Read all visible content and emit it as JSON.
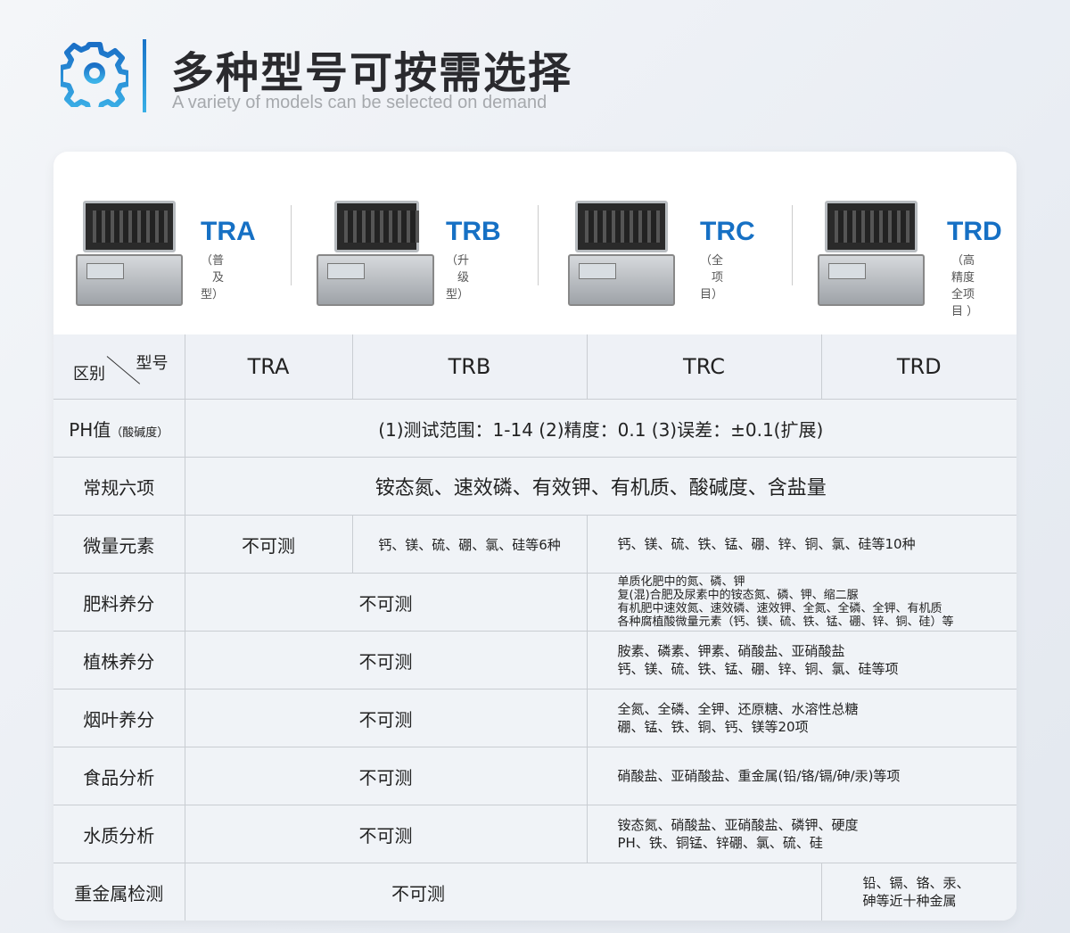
{
  "header": {
    "title": "多种型号可按需选择",
    "subtitle": "A variety of models can be selected on demand",
    "icon": "gear-icon",
    "accent": "#1670c4"
  },
  "products": [
    {
      "name": "TRA",
      "desc": "（普及型）"
    },
    {
      "name": "TRB",
      "desc": "（升级型）"
    },
    {
      "name": "TRC",
      "desc": "（全项目）"
    },
    {
      "name": "TRD",
      "desc": "（高精度\n全项目 ）"
    }
  ],
  "table": {
    "corner": {
      "top": "型号",
      "bottom": "区别"
    },
    "columns": [
      "TRA",
      "TRB",
      "TRC",
      "TRD"
    ],
    "rows": {
      "ph": {
        "label": "PH值",
        "label_note": "（酸碱度）",
        "value": "(1)测试范围：1-14 (2)精度：0.1 (3)误差：±0.1(扩展)"
      },
      "six": {
        "label": "常规六项",
        "value": "铵态氮、速效磷、有效钾、有机质、酸碱度、含盐量"
      },
      "trace": {
        "label": "微量元素",
        "tra": "不可测",
        "trb": "钙、镁、硫、硼、氯、硅等6种",
        "trcd": "钙、镁、硫、铁、锰、硼、锌、铜、氯、硅等10种"
      },
      "fert": {
        "label": "肥料养分",
        "ab": "不可测",
        "cd": [
          "单质化肥中的氮、磷、钾",
          "复(混)合肥及尿素中的铵态氮、磷、钾、缩二脲",
          "有机肥中速效氮、速效磷、速效钾、全氮、全磷、全钾、有机质",
          "各种腐植酸微量元素（钙、镁、硫、铁、锰、硼、锌、铜、硅）等"
        ]
      },
      "plant": {
        "label": "植株养分",
        "ab": "不可测",
        "cd": [
          "胺素、磷素、钾素、硝酸盐、亚硝酸盐",
          "钙、镁、硫、铁、锰、硼、锌、铜、氯、硅等项"
        ]
      },
      "tobacco": {
        "label": "烟叶养分",
        "ab": "不可测",
        "cd": [
          "全氮、全磷、全钾、还原糖、水溶性总糖",
          "硼、锰、铁、铜、钙、镁等20项"
        ]
      },
      "food": {
        "label": "食品分析",
        "ab": "不可测",
        "cd": [
          "硝酸盐、亚硝酸盐、重金属(铅/铬/镉/砷/汞)等项"
        ]
      },
      "water": {
        "label": "水质分析",
        "ab": "不可测",
        "cd": [
          "铵态氮、硝酸盐、亚硝酸盐、磷钾、硬度",
          "PH、铁、铜锰、锌硼、氯、硫、硅"
        ]
      },
      "metal": {
        "label": "重金属检测",
        "abc": "不可测",
        "d": [
          "铅、镉、铬、汞、",
          "砷等近十种金属"
        ]
      }
    }
  }
}
